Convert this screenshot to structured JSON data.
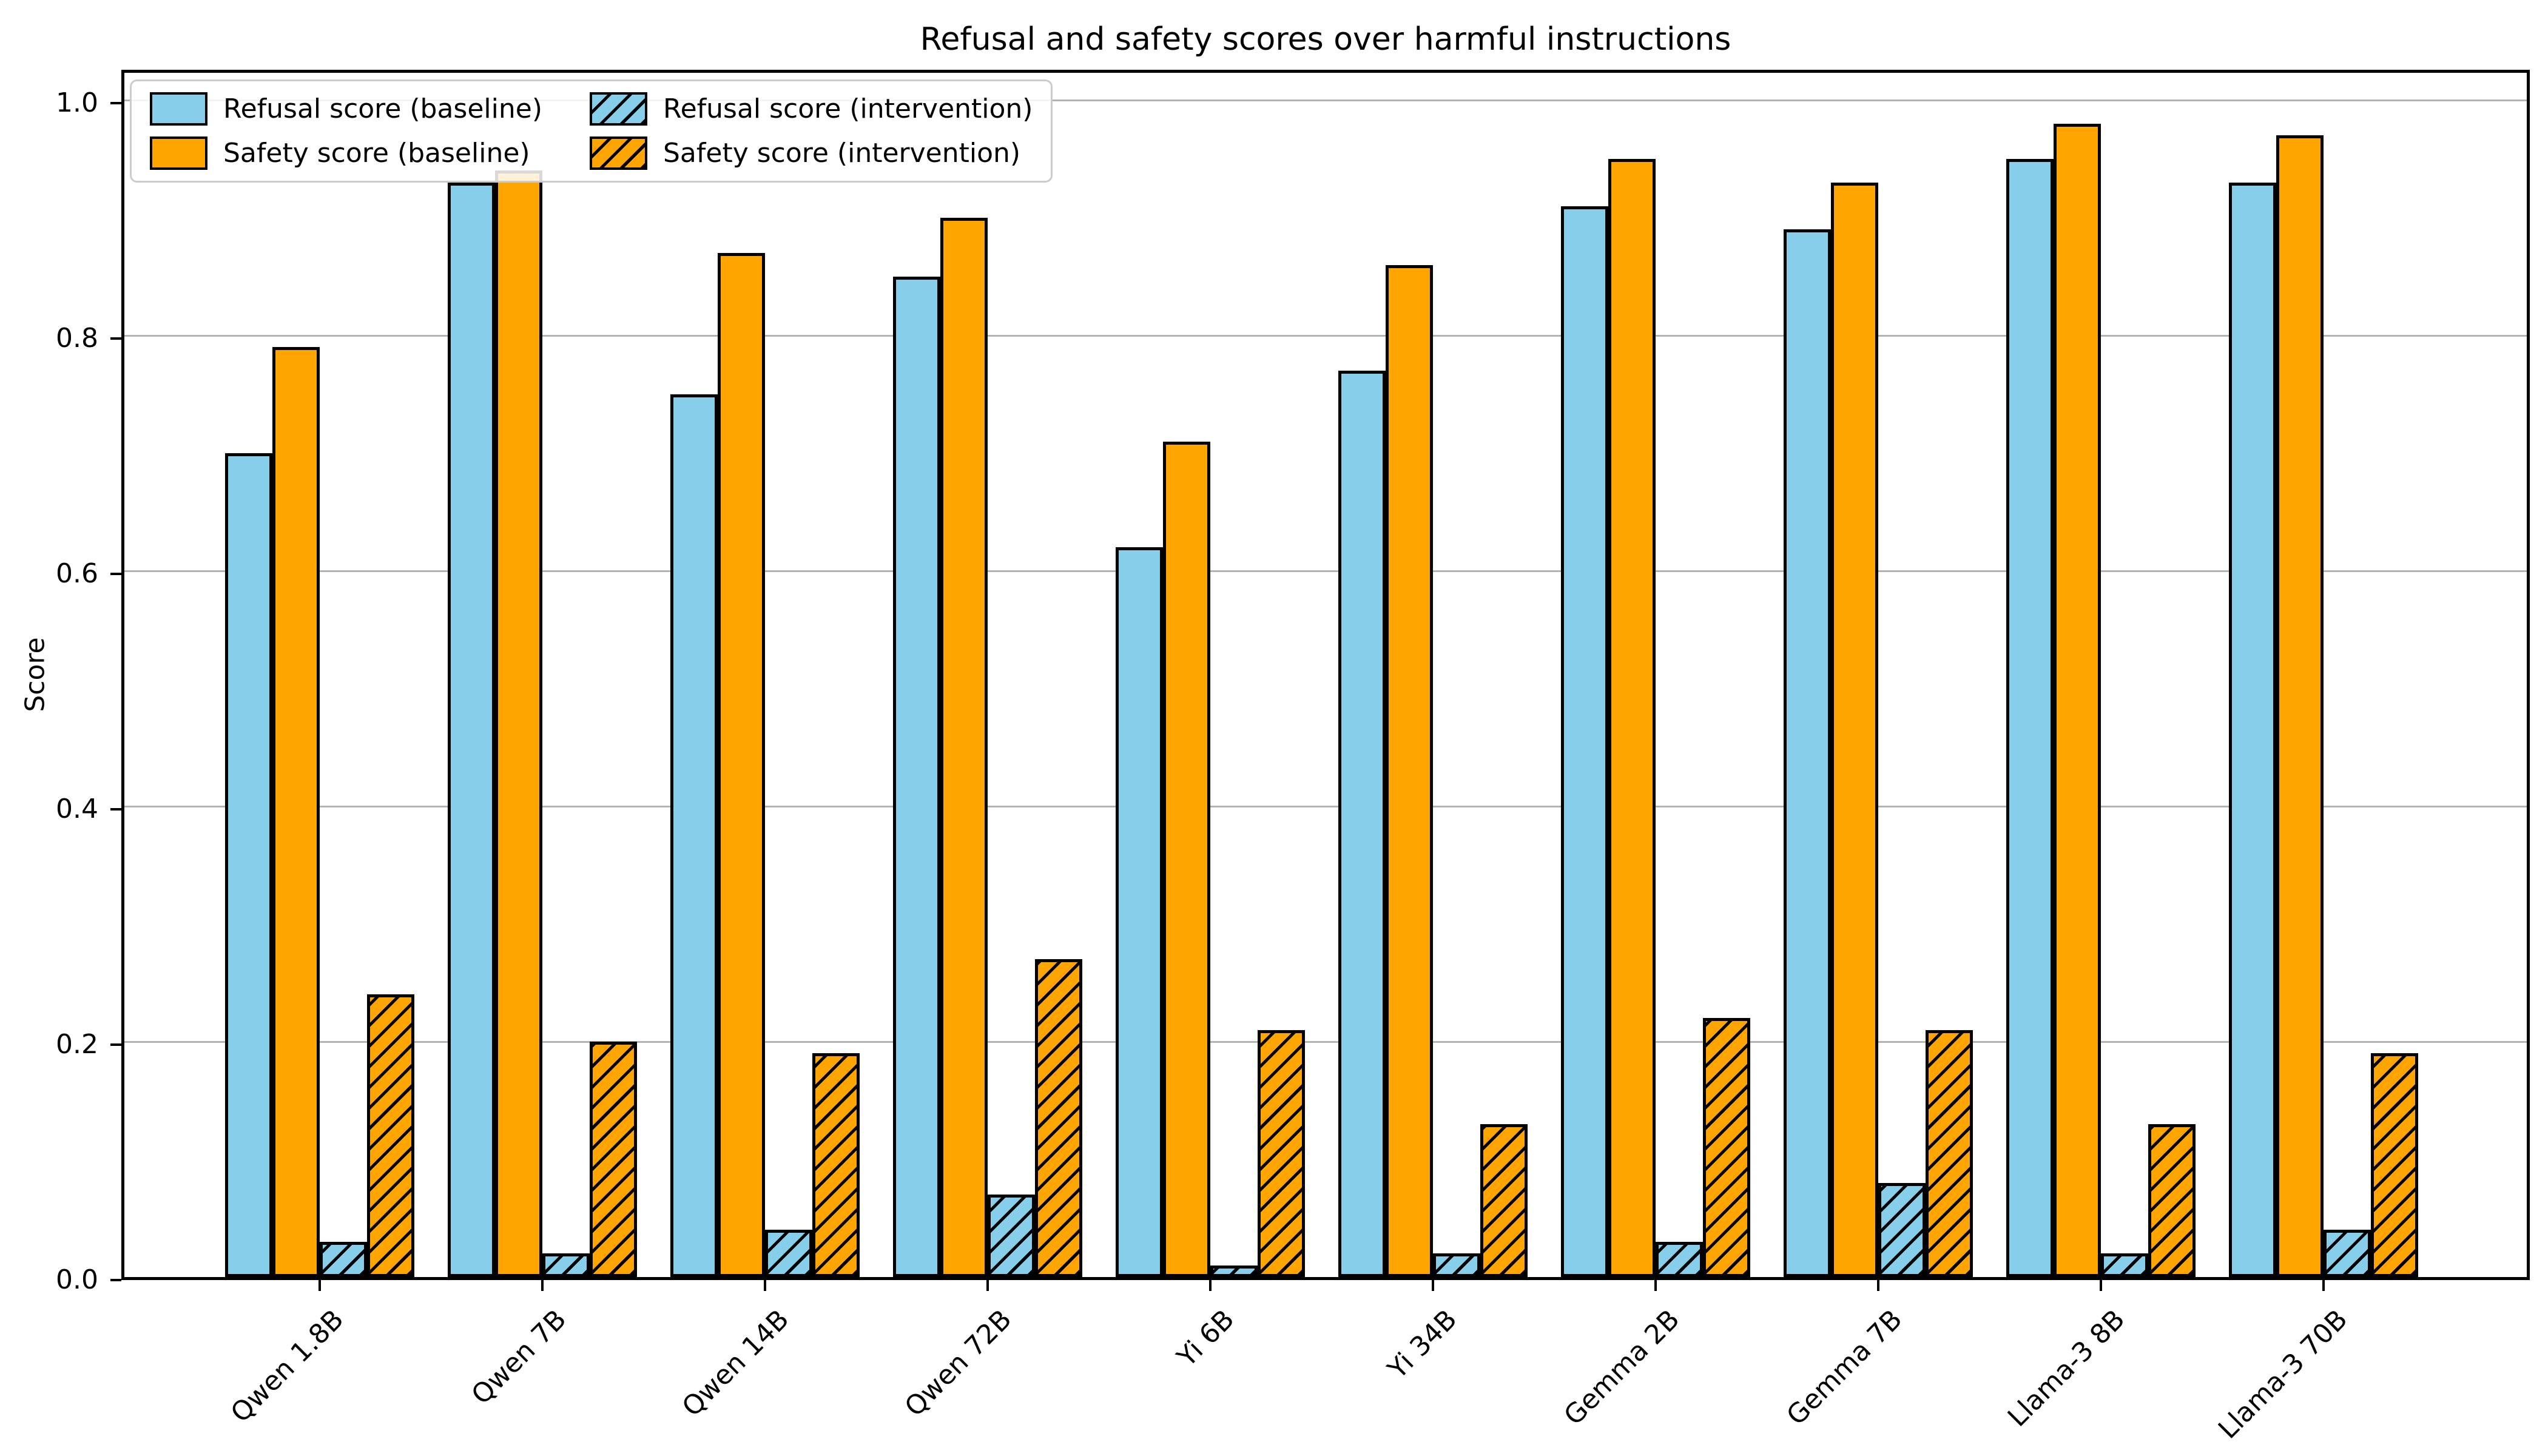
{
  "chart_data": {
    "type": "bar",
    "title": "Refusal and safety scores over harmful instructions",
    "xlabel": "",
    "ylabel": "Score",
    "categories": [
      "Qwen 1.8B",
      "Qwen 7B",
      "Qwen 14B",
      "Qwen 72B",
      "Yi 6B",
      "Yi 34B",
      "Gemma 2B",
      "Gemma 7B",
      "Llama-3 8B",
      "Llama-3 70B"
    ],
    "series": [
      {
        "name": "Refusal score (baseline)",
        "color": "#87CEEB",
        "hatch": false,
        "values": [
          0.7,
          0.93,
          0.75,
          0.85,
          0.62,
          0.77,
          0.91,
          0.89,
          0.95,
          0.93
        ]
      },
      {
        "name": "Safety score (baseline)",
        "color": "#FFA500",
        "hatch": false,
        "values": [
          0.79,
          0.94,
          0.87,
          0.9,
          0.71,
          0.86,
          0.95,
          0.93,
          0.98,
          0.97
        ]
      },
      {
        "name": "Refusal score (intervention)",
        "color": "#87CEEB",
        "hatch": true,
        "values": [
          0.03,
          0.02,
          0.04,
          0.07,
          0.01,
          0.02,
          0.03,
          0.08,
          0.02,
          0.04
        ]
      },
      {
        "name": "Safety score (intervention)",
        "color": "#FFA500",
        "hatch": true,
        "values": [
          0.24,
          0.2,
          0.19,
          0.27,
          0.21,
          0.13,
          0.22,
          0.21,
          0.13,
          0.19
        ]
      }
    ],
    "yticks": [
      "0.0",
      "0.2",
      "0.4",
      "0.6",
      "0.8",
      "1.0"
    ],
    "ylim": [
      0.0,
      1.03
    ],
    "grid": "horizontal",
    "gridline_color": "#b3b3b3",
    "edge_color": "#000000",
    "legend_position": "upper left",
    "legend_columns": 2
  }
}
